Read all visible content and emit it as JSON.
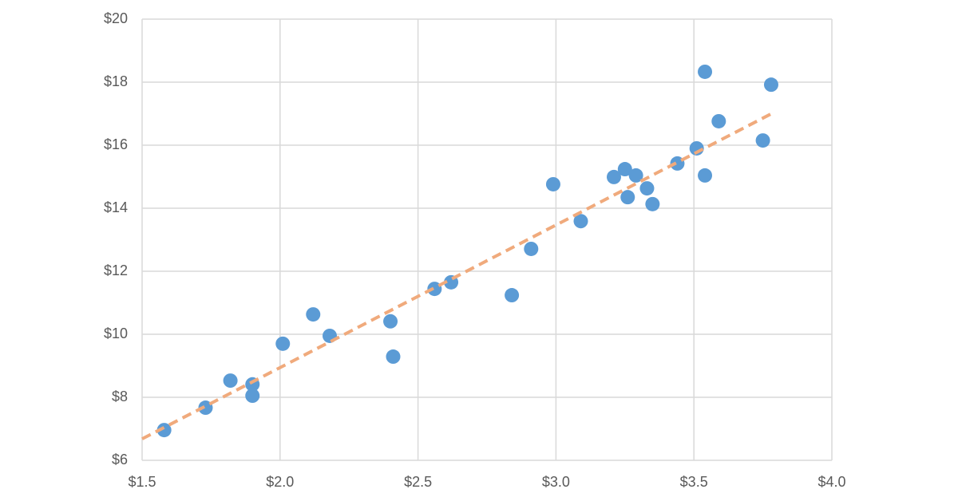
{
  "chart_data": {
    "type": "scatter",
    "x": [
      1.58,
      1.73,
      1.82,
      1.9,
      1.9,
      2.01,
      2.12,
      2.18,
      2.4,
      2.41,
      2.56,
      2.62,
      2.84,
      2.91,
      2.99,
      3.09,
      3.21,
      3.25,
      3.26,
      3.29,
      3.33,
      3.35,
      3.44,
      3.51,
      3.54,
      3.54,
      3.59,
      3.75,
      3.78
    ],
    "series": [
      {
        "color": "#5b9bd5",
        "values": [
          6.96,
          7.67,
          8.53,
          8.41,
          8.05,
          9.7,
          10.63,
          9.95,
          10.41,
          9.29,
          11.44,
          11.65,
          11.24,
          12.71,
          14.76,
          13.59,
          14.99,
          15.24,
          14.35,
          15.04,
          14.63,
          14.13,
          15.42,
          15.9,
          18.33,
          15.04,
          16.76,
          16.15,
          17.92
        ]
      }
    ],
    "trendline": {
      "color": "#f0aa7c",
      "x": [
        1.5,
        3.79
      ],
      "values": [
        6.68,
        17.04
      ]
    },
    "xlim": [
      1.5,
      4.0
    ],
    "xticks": [
      {
        "value": 1.5,
        "label": "$1.5"
      },
      {
        "value": 2.0,
        "label": "$2.0"
      },
      {
        "value": 2.5,
        "label": "$2.5"
      },
      {
        "value": 3.0,
        "label": "$3.0"
      },
      {
        "value": 3.5,
        "label": "$3.5"
      },
      {
        "value": 4.0,
        "label": "$4.0"
      }
    ],
    "ylim": [
      6,
      20
    ],
    "yticks": [
      {
        "value": 6,
        "label": "$6"
      },
      {
        "value": 8,
        "label": "$8"
      },
      {
        "value": 10,
        "label": "$10"
      },
      {
        "value": 12,
        "label": "$12"
      },
      {
        "value": 14,
        "label": "$14"
      },
      {
        "value": 16,
        "label": "$16"
      },
      {
        "value": 18,
        "label": "$18"
      },
      {
        "value": 20,
        "label": "$20"
      }
    ],
    "grid": true
  }
}
